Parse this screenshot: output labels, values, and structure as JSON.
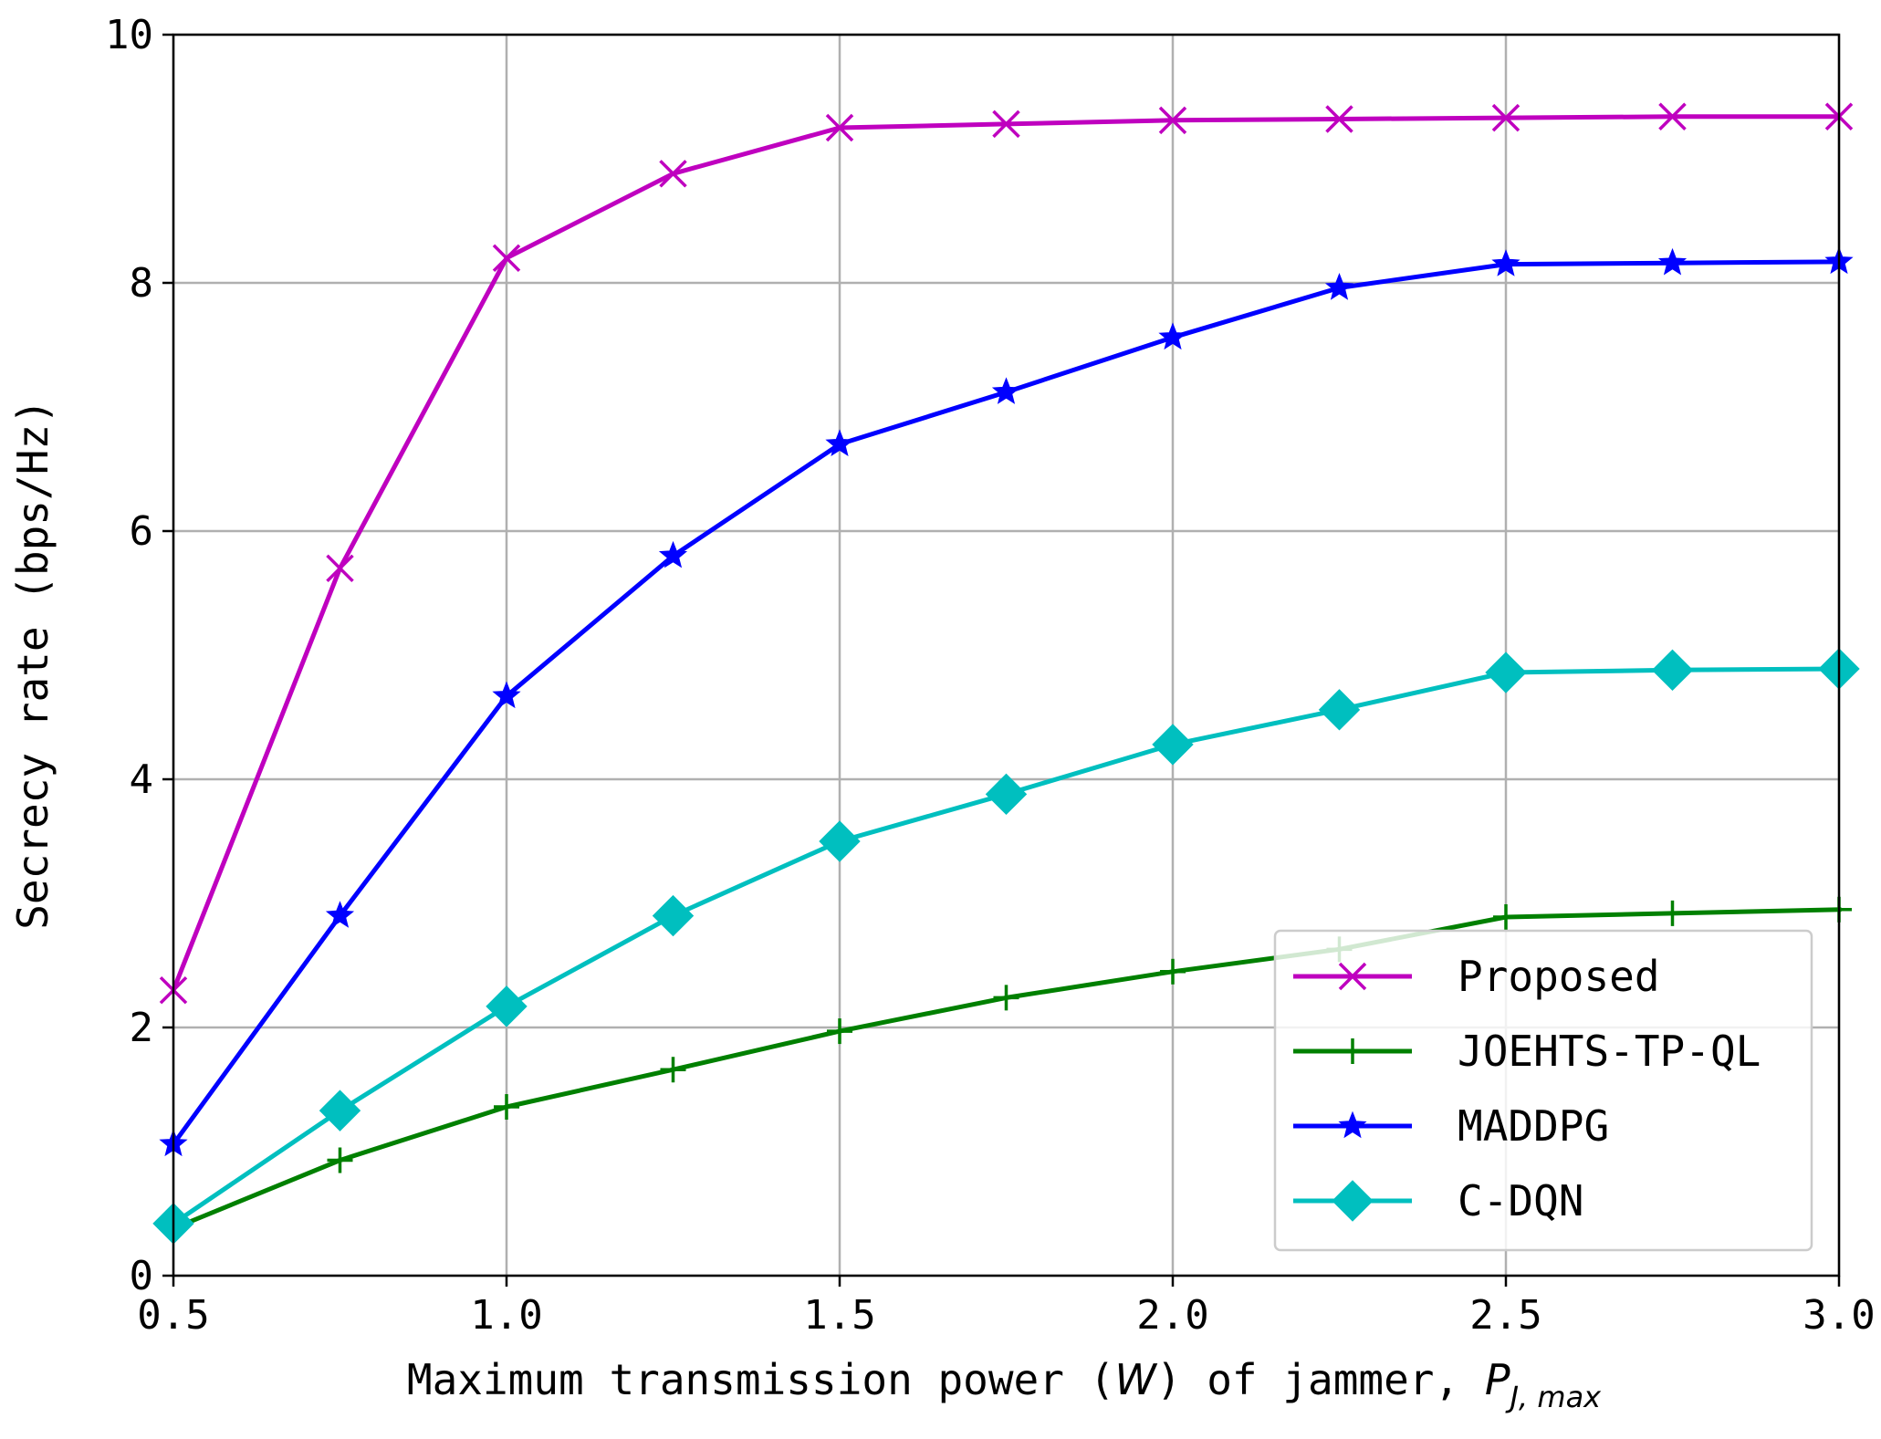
{
  "chart_data": {
    "type": "line",
    "title": "",
    "xlabel_parts": {
      "prefix": "Maximum transmission power (",
      "unit": "W",
      "middle": ") of jammer, ",
      "symbol": "P",
      "subscript": "J, max"
    },
    "ylabel": "Secrecy rate (bps/Hz)",
    "x": [
      0.5,
      0.75,
      1.0,
      1.25,
      1.5,
      1.75,
      2.0,
      2.25,
      2.5,
      2.75,
      3.0
    ],
    "xlim": [
      0.5,
      3.0
    ],
    "ylim": [
      0,
      10
    ],
    "xticks": [
      "0.5",
      "1.0",
      "1.5",
      "2.0",
      "2.5",
      "3.0"
    ],
    "yticks": [
      "0",
      "2",
      "4",
      "6",
      "8",
      "10"
    ],
    "grid": true,
    "legend_position": "lower-right",
    "series": [
      {
        "name": "Proposed",
        "color": "#bf00bf",
        "marker": "x",
        "values": [
          2.3,
          5.7,
          8.2,
          8.88,
          9.25,
          9.28,
          9.31,
          9.32,
          9.33,
          9.34,
          9.34
        ]
      },
      {
        "name": "JOEHTS-TP-QL",
        "color": "#008000",
        "marker": "plus",
        "values": [
          0.38,
          0.93,
          1.36,
          1.66,
          1.97,
          2.24,
          2.45,
          2.63,
          2.89,
          2.92,
          2.95
        ]
      },
      {
        "name": "MADDPG",
        "color": "#0000ff",
        "marker": "star",
        "values": [
          1.06,
          2.9,
          4.67,
          5.8,
          6.7,
          7.12,
          7.56,
          7.96,
          8.15,
          8.16,
          8.17
        ]
      },
      {
        "name": "C-DQN",
        "color": "#00bfbf",
        "marker": "diamond",
        "values": [
          0.42,
          1.33,
          2.17,
          2.9,
          3.5,
          3.88,
          4.28,
          4.56,
          4.86,
          4.88,
          4.89
        ]
      }
    ]
  }
}
